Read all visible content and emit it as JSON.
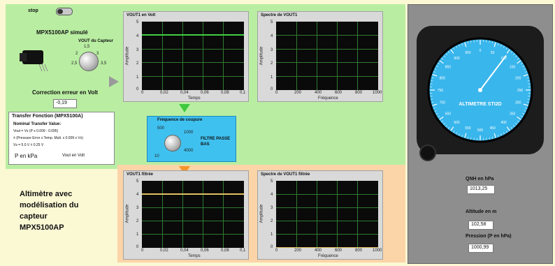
{
  "stop_label": "stop",
  "sensor": {
    "title": "MPX5100AP simulé",
    "knob_label": "VOUT du Capteur",
    "knob_ticks": [
      "1,5",
      "2",
      "2,5",
      "3",
      "3,5",
      "4",
      "4,5"
    ],
    "correction_label": "Correction erreur en Volt",
    "correction_value": "-0,19"
  },
  "transfer": {
    "title": "Transfer Fonction (MPX5100A)",
    "nominal": "Nominal Transfer Value:",
    "line1": "Vout = Vs (P x 0.009 - 0.095)",
    "line2": "± (Pressure Error x Temp. Mult. x 0.009 x Vs)",
    "line3": "Vs = 5.0 V ± 0.25 V",
    "unit_p": "P en kPa",
    "unit_v": "Vout en Volt"
  },
  "filter": {
    "title": "Fréquence de coupure",
    "label": "FILTRE PASSE BAS",
    "ticks": [
      "500",
      "1000",
      "10",
      "4000"
    ]
  },
  "main_title": [
    "Altimètre avec",
    "modélisation du",
    "capteur",
    "MPX5100AP"
  ],
  "graphs": {
    "vout1": {
      "title": "VOUT1 en Volt",
      "xlabel": "Temps",
      "ylabel": "Amplitude",
      "yticks": [
        "5",
        "4",
        "3",
        "2",
        "1",
        "0"
      ],
      "xticks": [
        "0",
        "0,02",
        "0,04",
        "0,06",
        "0,08",
        "0,1"
      ]
    },
    "spec1": {
      "title": "Spectre de VOUT1",
      "xlabel": "Fréquence",
      "ylabel": "Amplitude",
      "yticks": [
        "5",
        "4",
        "3",
        "2",
        "1",
        "0"
      ],
      "xticks": [
        "0",
        "200",
        "400",
        "600",
        "800",
        "1000"
      ]
    },
    "vout1f": {
      "title": "VOUT1 filtrée",
      "xlabel": "Temps",
      "ylabel": "Amplitude",
      "yticks": [
        "5",
        "4",
        "3",
        "2",
        "1",
        "0"
      ],
      "xticks": [
        "0",
        "0,02",
        "0,04",
        "0,06",
        "0,08",
        "0,1"
      ]
    },
    "spec1f": {
      "title": "Spectre de VOUT1 filtrée",
      "xlabel": "Fréquence",
      "ylabel": "Amplitude",
      "yticks": [
        "5",
        "4",
        "3",
        "2",
        "1",
        "0"
      ],
      "xticks": [
        "0",
        "200",
        "400",
        "600",
        "800",
        "1000"
      ]
    }
  },
  "altimeter": {
    "label": "ALTIMETRE STI2D",
    "dial_numbers": [
      "0",
      "50",
      "100",
      "150",
      "200",
      "250",
      "300",
      "350",
      "400",
      "450",
      "500",
      "550",
      "600",
      "650",
      "700",
      "750",
      "800",
      "850",
      "900",
      "950",
      "1000"
    ],
    "qnh_label": "QNH en hPa",
    "qnh_value": "1013,25",
    "altitude_label": "Altitude en m",
    "altitude_value": "102,58",
    "pression_label": "Pression (P en hPa)",
    "pression_value": "1000,99"
  },
  "colors": {
    "dial_face": "#39b6ec",
    "signal": "#3fcf3f",
    "filtered_signal": "#e0c060",
    "green_zone": "#b9eea2",
    "orange_zone": "#fbd5a8"
  }
}
